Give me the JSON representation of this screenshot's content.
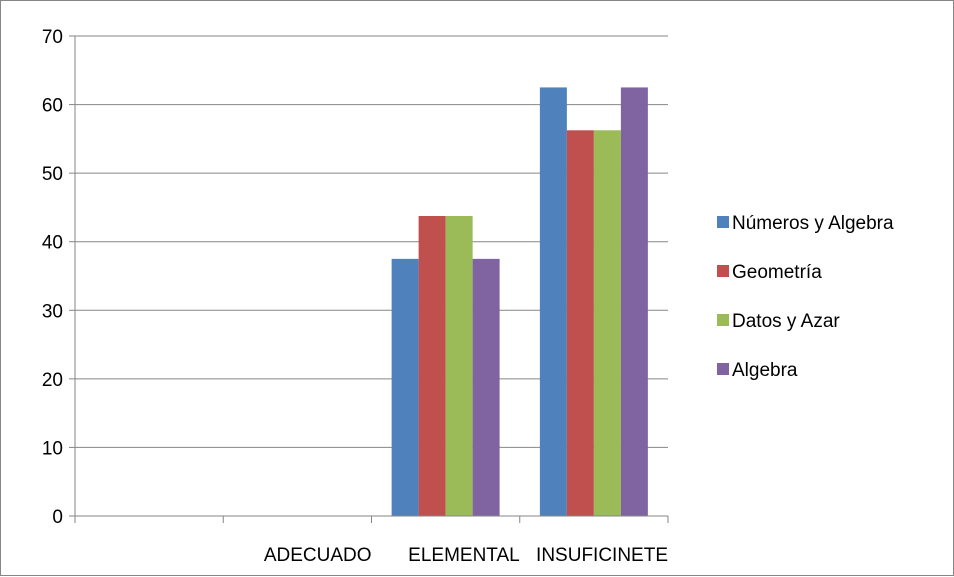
{
  "chart_data": {
    "type": "bar",
    "categories": [
      "",
      "ADECUADO",
      "ELEMENTAL",
      "INSUFICINETE"
    ],
    "series": [
      {
        "name": "Números y Algebra",
        "color": "#4F81BD",
        "values": [
          0,
          0,
          37.5,
          62.5
        ]
      },
      {
        "name": "Geometría",
        "color": "#C0504D",
        "values": [
          0,
          0,
          43.75,
          56.25
        ]
      },
      {
        "name": "Datos y Azar",
        "color": "#9BBB59",
        "values": [
          0,
          0,
          43.75,
          56.25
        ]
      },
      {
        "name": "Algebra",
        "color": "#8064A2",
        "values": [
          0,
          0,
          37.5,
          62.5
        ]
      }
    ],
    "y_ticks": [
      "0",
      "10",
      "20",
      "30",
      "40",
      "50",
      "60",
      "70"
    ],
    "ylim": [
      0,
      70
    ],
    "grid": true,
    "legend": "right"
  }
}
